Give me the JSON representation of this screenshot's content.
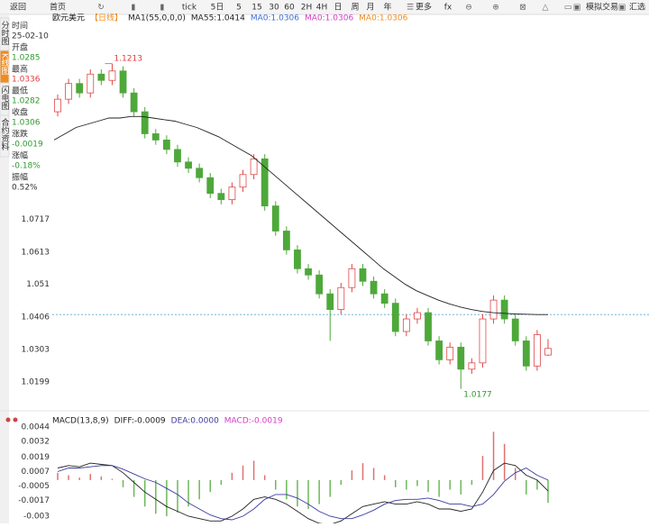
{
  "toolbar": [
    "返回",
    "首页",
    "tick",
    "5日",
    "5",
    "15",
    "30",
    "60",
    "2H",
    "4H",
    "日",
    "周",
    "月",
    "年",
    "更多",
    "fx",
    "模拟交易",
    "汇选"
  ],
  "side_tabs": [
    {
      "text": "分时图",
      "active": false
    },
    {
      "text": "K线图",
      "active": true
    },
    {
      "text": "闪电图",
      "active": false
    },
    {
      "text": "合约资料",
      "active": false
    }
  ],
  "info_panel": [
    {
      "label": "时间",
      "value": "25-02-10",
      "color": "#333333"
    },
    {
      "label": "开盘",
      "value": "1.0285",
      "color": "#2e9a2e"
    },
    {
      "label": "最高",
      "value": "1.0336",
      "color": "#e03c3c"
    },
    {
      "label": "最低",
      "value": "1.0282",
      "color": "#2e9a2e"
    },
    {
      "label": "收盘",
      "value": "1.0306",
      "color": "#2e9a2e"
    },
    {
      "label": "涨跌",
      "value": "-0.0019",
      "color": "#2e9a2e"
    },
    {
      "label": "涨幅",
      "value": "-0.18%",
      "color": "#2e9a2e"
    },
    {
      "label": "振幅",
      "value": "0.52%",
      "color": "#333333"
    }
  ],
  "chart_data": [
    {
      "type": "candlestick",
      "legend": [
        {
          "text": "欧元美元",
          "color": "#222222"
        },
        {
          "text": "【日线】",
          "color": "#f08c1e"
        },
        {
          "text": "MA1(55,0,0,0)",
          "color": "#222222"
        },
        {
          "text": "MA55:1.0414",
          "color": "#222222"
        },
        {
          "text": "MA0:1.0306",
          "color": "#3a6fd8"
        },
        {
          "text": "MA0:1.0306",
          "color": "#d63cc8"
        },
        {
          "text": "MA0:1.0306",
          "color": "#f08c1e"
        }
      ],
      "up_color": "#e04848",
      "down_color": "#4ea83a",
      "open": [
        1.106,
        1.11,
        1.115,
        1.112,
        1.118,
        1.116,
        1.119,
        1.112,
        1.106,
        1.099,
        1.097,
        1.094,
        1.09,
        1.088,
        1.085,
        1.08,
        1.078,
        1.082,
        1.086,
        1.091,
        1.076,
        1.068,
        1.062,
        1.056,
        1.054,
        1.048,
        1.043,
        1.05,
        1.056,
        1.052,
        1.048,
        1.045,
        1.036,
        1.04,
        1.042,
        1.033,
        1.027,
        1.031,
        1.024,
        1.026,
        1.04,
        1.046,
        1.04,
        1.033,
        1.025,
        1.0285
      ],
      "high": [
        1.1115,
        1.1165,
        1.1165,
        1.1195,
        1.1195,
        1.1213,
        1.1205,
        1.1135,
        1.1075,
        1.1005,
        1.0985,
        1.0955,
        1.0915,
        1.0895,
        1.0865,
        1.0815,
        1.0835,
        1.0875,
        1.0925,
        1.0925,
        1.0775,
        1.0695,
        1.0635,
        1.0575,
        1.0555,
        1.0495,
        1.0515,
        1.0575,
        1.0575,
        1.0535,
        1.0495,
        1.0465,
        1.0415,
        1.0435,
        1.0435,
        1.0345,
        1.0325,
        1.0325,
        1.0275,
        1.0415,
        1.0475,
        1.0475,
        1.0415,
        1.0345,
        1.0365,
        1.0336
      ],
      "low": [
        1.1045,
        1.1085,
        1.1105,
        1.1105,
        1.1145,
        1.1145,
        1.1105,
        1.1045,
        1.0975,
        1.0955,
        1.0925,
        1.0885,
        1.0865,
        1.0835,
        1.0785,
        1.0765,
        1.0765,
        1.0805,
        1.0845,
        1.0745,
        1.0665,
        1.0605,
        1.0545,
        1.0525,
        1.0465,
        1.033,
        1.0415,
        1.0485,
        1.0505,
        1.0465,
        1.0435,
        1.0345,
        1.0345,
        1.0385,
        1.0315,
        1.0255,
        1.0255,
        1.0177,
        1.0225,
        1.0245,
        1.0385,
        1.0385,
        1.0315,
        1.0235,
        1.0235,
        1.0282
      ],
      "close": [
        1.11,
        1.115,
        1.112,
        1.118,
        1.116,
        1.119,
        1.112,
        1.106,
        1.099,
        1.097,
        1.094,
        1.09,
        1.088,
        1.085,
        1.08,
        1.078,
        1.082,
        1.086,
        1.091,
        1.076,
        1.068,
        1.062,
        1.056,
        1.054,
        1.048,
        1.043,
        1.05,
        1.056,
        1.052,
        1.048,
        1.045,
        1.036,
        1.04,
        1.042,
        1.033,
        1.027,
        1.031,
        1.024,
        1.026,
        1.04,
        1.046,
        1.04,
        1.033,
        1.025,
        1.035,
        1.0306
      ],
      "ma55": {
        "color": "#222222",
        "values": [
          1.097,
          1.099,
          1.101,
          1.102,
          1.103,
          1.104,
          1.104,
          1.1045,
          1.1045,
          1.104,
          1.1035,
          1.103,
          1.102,
          1.101,
          1.0995,
          1.098,
          1.096,
          1.094,
          1.092,
          1.089,
          1.086,
          1.083,
          1.08,
          1.077,
          1.074,
          1.071,
          1.068,
          1.065,
          1.062,
          1.059,
          1.056,
          1.0535,
          1.051,
          1.049,
          1.0475,
          1.046,
          1.0448,
          1.0438,
          1.043,
          1.0424,
          1.042,
          1.0418,
          1.0416,
          1.0415,
          1.0414,
          1.0414
        ]
      },
      "ylim": [
        1.0139,
        1.1373
      ],
      "yticks": [
        1.0199,
        1.0303,
        1.0406,
        1.051,
        1.0613,
        1.0717
      ]
    },
    {
      "type": "macd",
      "legend": [
        {
          "text": "MACD(13,8,9)",
          "color": "#222222"
        },
        {
          "text": "DIFF:-0.0009",
          "color": "#222222"
        },
        {
          "text": "DEA:0.0000",
          "color": "#3a3aa0"
        },
        {
          "text": "MACD:-0.0019",
          "color": "#d63cc8"
        }
      ],
      "up_color": "#e07070",
      "down_color": "#6cb85a",
      "histogram": [
        0.0006,
        0.0004,
        0.0002,
        0.0005,
        0.0003,
        0.0001,
        -0.0006,
        -0.0014,
        -0.0022,
        -0.0028,
        -0.003,
        -0.0027,
        -0.0022,
        -0.0016,
        -0.001,
        -0.0004,
        0.0006,
        0.0012,
        0.0016,
        0.0004,
        -0.0008,
        -0.0016,
        -0.0022,
        -0.0024,
        -0.002,
        -0.0014,
        -0.0004,
        0.0008,
        0.0014,
        0.001,
        0.0004,
        -0.0006,
        -0.0008,
        -0.0005,
        -0.001,
        -0.0014,
        -0.0008,
        -0.0012,
        -0.0004,
        0.002,
        0.004,
        0.003,
        0.001,
        -0.0012,
        -0.0008,
        -0.0019
      ],
      "series": [
        {
          "name": "DIFF",
          "color": "#222222",
          "values": [
            0.001,
            0.0012,
            0.0011,
            0.0014,
            0.0013,
            0.0012,
            0.0006,
            -0.0002,
            -0.001,
            -0.0016,
            -0.0022,
            -0.0026,
            -0.003,
            -0.0032,
            -0.0034,
            -0.0034,
            -0.003,
            -0.0024,
            -0.0016,
            -0.0014,
            -0.0016,
            -0.002,
            -0.0026,
            -0.0032,
            -0.0036,
            -0.0037,
            -0.0034,
            -0.0028,
            -0.0022,
            -0.002,
            -0.0018,
            -0.002,
            -0.002,
            -0.0018,
            -0.002,
            -0.0024,
            -0.0024,
            -0.0026,
            -0.0024,
            -0.001,
            0.0008,
            0.0014,
            0.0012,
            0.0004,
            0.0,
            -0.0009
          ]
        },
        {
          "name": "DEA",
          "color": "#3a3aa0",
          "values": [
            0.0007,
            0.001,
            0.001,
            0.0011,
            0.0012,
            0.0012,
            0.0009,
            0.0005,
            0.0001,
            -0.0002,
            -0.0007,
            -0.0012,
            -0.0019,
            -0.0024,
            -0.0029,
            -0.0032,
            -0.0033,
            -0.003,
            -0.0024,
            -0.0016,
            -0.0012,
            -0.0012,
            -0.0015,
            -0.002,
            -0.0026,
            -0.003,
            -0.0032,
            -0.0032,
            -0.0029,
            -0.0025,
            -0.002,
            -0.0017,
            -0.0016,
            -0.0016,
            -0.0015,
            -0.0017,
            -0.002,
            -0.002,
            -0.0022,
            -0.002,
            -0.0012,
            -0.0001,
            0.0006,
            0.001,
            0.0004,
            0.0
          ]
        }
      ],
      "ylim": [
        -0.0036,
        0.0053
      ],
      "yticks": [
        0.0044,
        0.0032,
        0.0019,
        0.0007,
        -0.0005,
        -0.0017,
        -0.003
      ]
    }
  ]
}
